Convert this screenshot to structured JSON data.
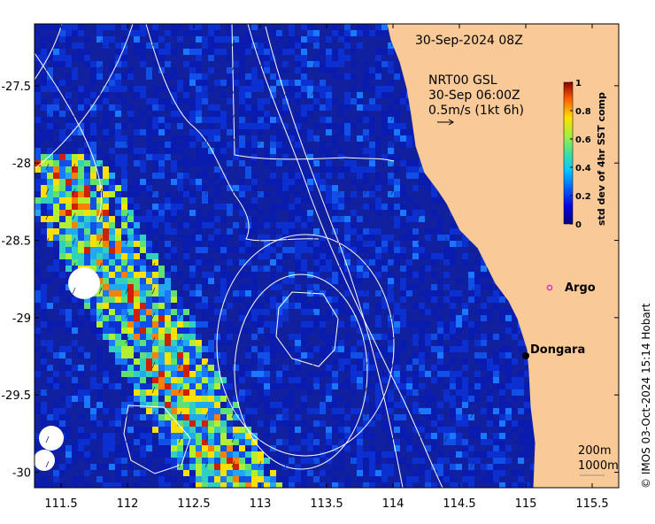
{
  "map": {
    "timestamp": "30-Sep-2024 08Z",
    "wind_info": {
      "line1": "NRT00 GSL",
      "line2": "30-Sep 06:00Z",
      "line3": "0.5m/s (1kt 6h)"
    },
    "colorbar": {
      "title": "std dev of 4hr SST comp",
      "ticks": [
        "0",
        "0.2",
        "0.4",
        "0.6",
        "0.8",
        "1"
      ]
    },
    "x_ticks": [
      "111.5",
      "112",
      "112.5",
      "113",
      "113.5",
      "114",
      "114.5",
      "115",
      "115.5"
    ],
    "y_ticks": [
      "-27.5",
      "-28",
      "-28.5",
      "-29",
      "-29.5",
      "-30"
    ],
    "x_tick_values": [
      111.5,
      112,
      112.5,
      113,
      113.5,
      114,
      114.5,
      115,
      115.5
    ],
    "y_tick_values": [
      -27.5,
      -28,
      -28.5,
      -29,
      -29.5,
      -30
    ],
    "extent": {
      "lon_min": 111.3,
      "lon_max": 115.7,
      "lat_min": -30.1,
      "lat_max": -27.1
    },
    "places": [
      {
        "name": "Argo",
        "lon": 115.0,
        "lat": -28.83,
        "type": "float"
      },
      {
        "name": "Dongara",
        "lon": 114.93,
        "lat": -29.25,
        "type": "town"
      }
    ],
    "legend": {
      "depth1": "200m",
      "depth2": "1000m"
    },
    "credit": "© IMOS 03-Oct-2024 15:14 Hobart",
    "colors": {
      "land": "#f9c998",
      "ocean": "#10209f",
      "argo": "#dd33cc",
      "contour": "#ffffff"
    }
  }
}
